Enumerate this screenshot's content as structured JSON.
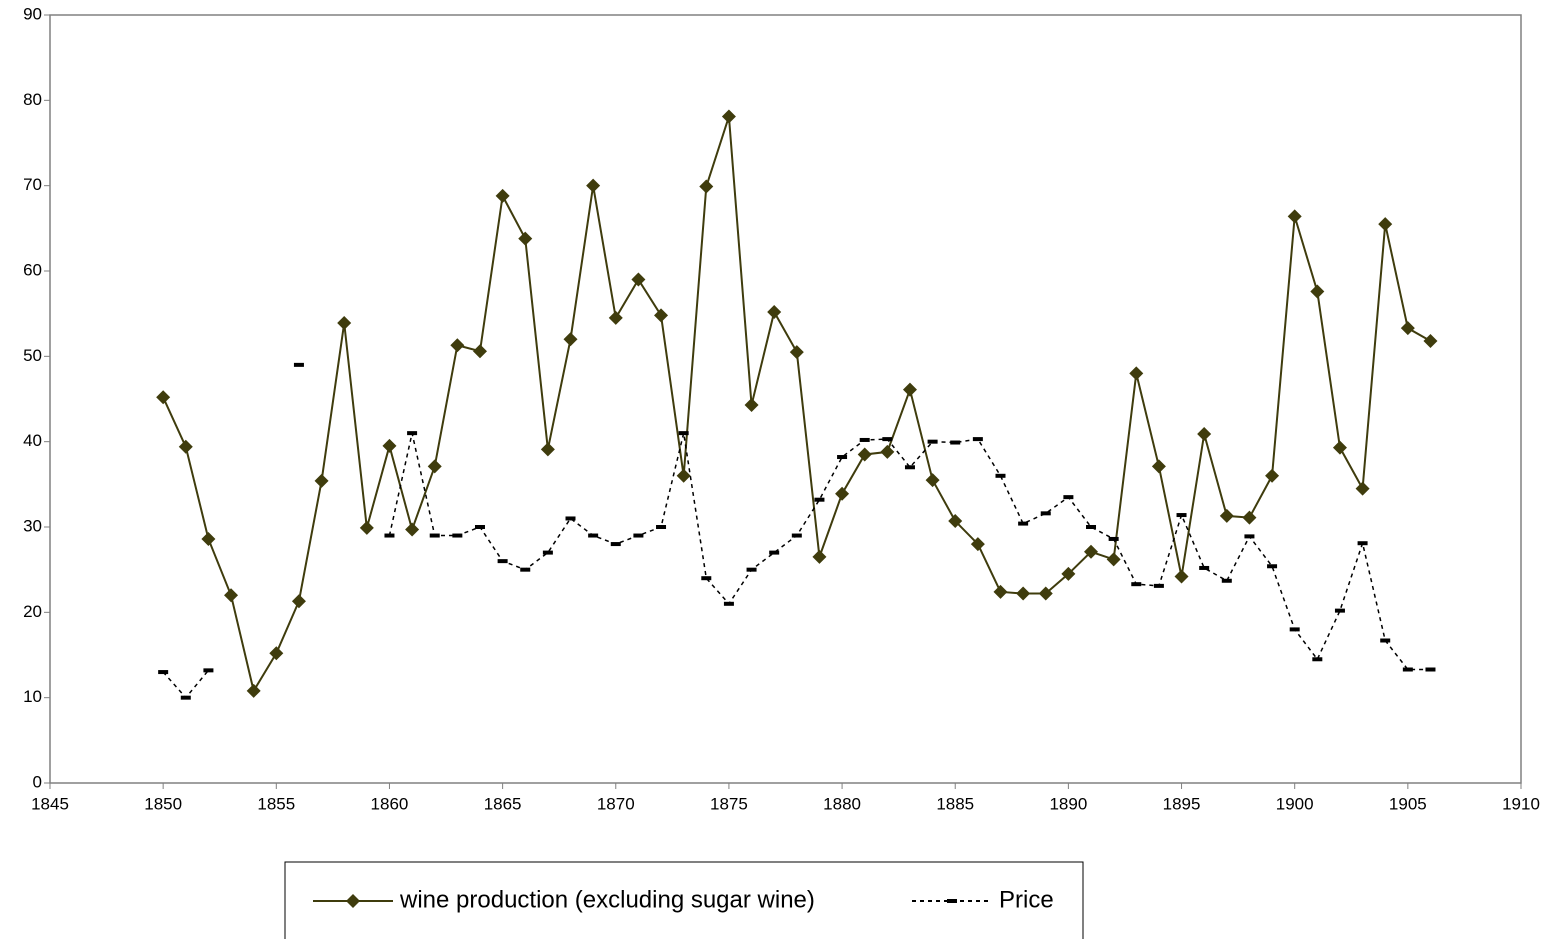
{
  "chart_data": {
    "type": "line",
    "x": [
      1850,
      1851,
      1852,
      1853,
      1854,
      1855,
      1856,
      1857,
      1858,
      1859,
      1860,
      1861,
      1862,
      1863,
      1864,
      1865,
      1866,
      1867,
      1868,
      1869,
      1870,
      1871,
      1872,
      1873,
      1874,
      1875,
      1876,
      1877,
      1878,
      1879,
      1880,
      1881,
      1882,
      1883,
      1884,
      1885,
      1886,
      1887,
      1888,
      1889,
      1890,
      1891,
      1892,
      1893,
      1894,
      1895,
      1896,
      1897,
      1898,
      1899,
      1900,
      1901,
      1902,
      1903,
      1904,
      1905,
      1906
    ],
    "series": [
      {
        "name": "wine production (excluding sugar wine)",
        "color": "#3f3c0d",
        "marker": "diamond",
        "dash": false,
        "values": [
          45.2,
          39.4,
          28.6,
          22,
          10.8,
          15.2,
          21.3,
          35.4,
          53.9,
          29.9,
          39.5,
          29.7,
          37.1,
          51.3,
          50.6,
          68.8,
          63.8,
          39.1,
          52,
          70,
          54.5,
          59,
          54.8,
          36,
          69.9,
          78.1,
          44.3,
          55.2,
          50.5,
          26.5,
          33.9,
          38.5,
          38.8,
          46.1,
          35.5,
          30.7,
          28,
          22.4,
          22.2,
          22.2,
          24.5,
          27.1,
          26.2,
          48,
          37.1,
          24.2,
          40.9,
          31.3,
          31.1,
          36,
          66.4,
          57.6,
          39.3,
          34.5,
          65.5,
          53.3,
          51.8
        ]
      },
      {
        "name": "Price",
        "color": "#000000",
        "marker": "dash",
        "dash": true,
        "values": [
          13,
          10,
          13.2,
          null,
          null,
          null,
          49,
          null,
          null,
          null,
          29,
          41,
          29,
          29,
          30,
          26,
          25,
          27,
          31,
          29,
          28,
          29,
          30,
          41,
          24,
          21,
          25,
          27,
          29,
          33.2,
          38.2,
          40.2,
          40.3,
          37,
          40,
          39.9,
          40.3,
          36,
          30.4,
          31.6,
          33.5,
          30,
          28.6,
          23.3,
          23.1,
          31.4,
          25.2,
          23.7,
          28.9,
          25.4,
          18,
          14.5,
          20.2,
          28.1,
          16.7,
          13.3,
          13.3
        ]
      }
    ],
    "xlim": [
      1845,
      1910
    ],
    "xticks": [
      1845,
      1850,
      1855,
      1860,
      1865,
      1870,
      1875,
      1880,
      1885,
      1890,
      1895,
      1900,
      1905,
      1910
    ],
    "ylim": [
      0,
      90
    ],
    "yticks": [
      0,
      10,
      20,
      30,
      40,
      50,
      60,
      70,
      80,
      90
    ],
    "grid": false,
    "legend": "bottom"
  }
}
